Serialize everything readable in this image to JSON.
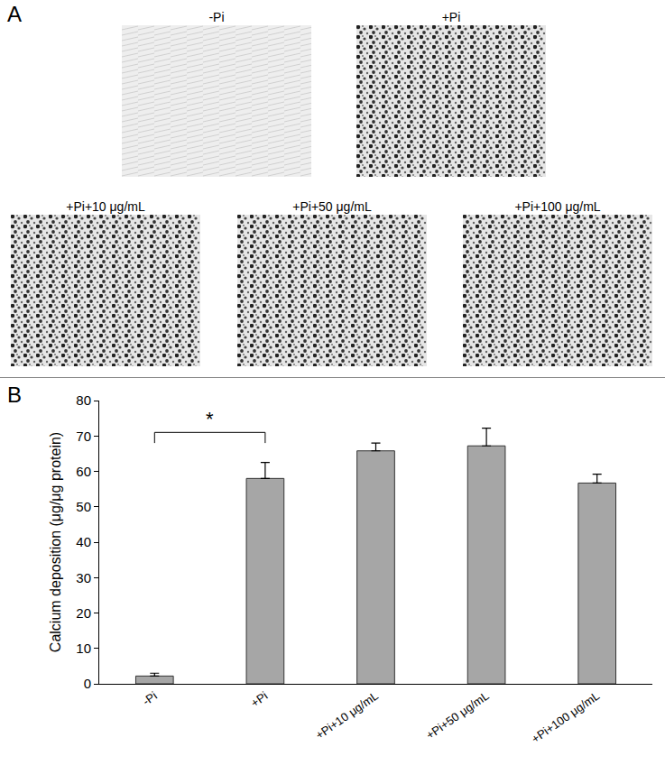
{
  "panel_labels": [
    "A",
    "B"
  ],
  "images": [
    {
      "caption": "-Pi",
      "stained": false
    },
    {
      "caption": "+Pi",
      "stained": true
    },
    {
      "caption": "+Pi+10 μg/mL",
      "stained": true
    },
    {
      "caption": "+Pi+50 μg/mL",
      "stained": true
    },
    {
      "caption": "+Pi+100 μg/mL",
      "stained": true
    }
  ],
  "chart_data": {
    "type": "bar",
    "categories": [
      "-Pi",
      "+Pi",
      "+Pi+10 μg/mL",
      "+Pi+50 μg/mL",
      "+Pi+100 μg/mL"
    ],
    "values": [
      2.2,
      58,
      65.8,
      67.2,
      56.7
    ],
    "errors": [
      0.8,
      4.5,
      2.2,
      5,
      2.5
    ],
    "color": "#a6a6a6",
    "y_label": "Calcium deposition (μg/μg protein)",
    "ylim": [
      0,
      80
    ],
    "yticks": [
      0,
      10,
      20,
      30,
      40,
      50,
      60,
      70,
      80
    ],
    "grid": false,
    "significance": {
      "from": "-Pi",
      "to": "+Pi",
      "label": "*",
      "y": 71
    }
  }
}
